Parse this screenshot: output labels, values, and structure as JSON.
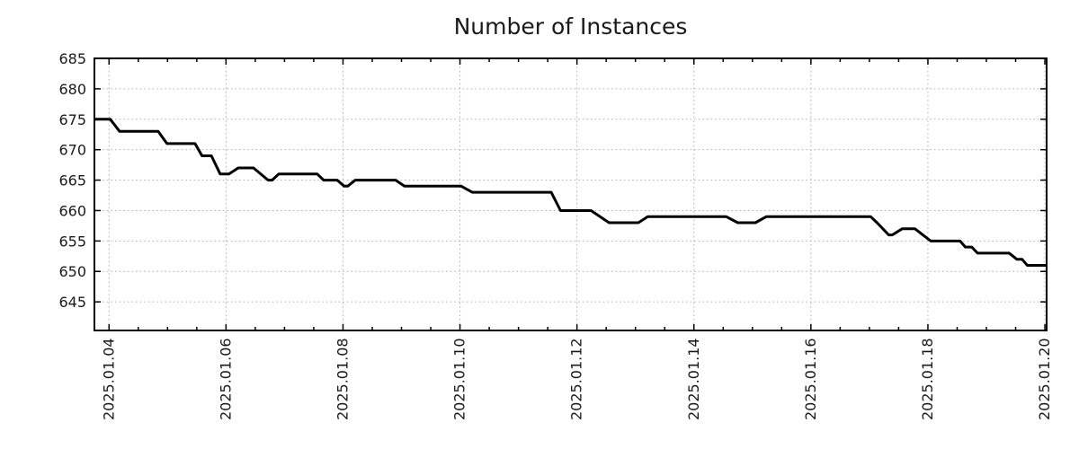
{
  "chart_data": {
    "type": "line",
    "title": "Number of Instances",
    "xlabel": "",
    "ylabel": "",
    "x_axis": {
      "tick_days": [
        4,
        6,
        8,
        10,
        12,
        14,
        16,
        18,
        20
      ],
      "tick_labels": [
        "2025.01.04",
        "2025.01.06",
        "2025.01.08",
        "2025.01.10",
        "2025.01.12",
        "2025.01.14",
        "2025.01.16",
        "2025.01.18",
        "2025.01.20"
      ],
      "range_days": [
        3.75,
        20.03
      ],
      "minor_tick_step_days": 0.5,
      "label_rotation_deg": -90
    },
    "y_axis": {
      "ticks": [
        645,
        650,
        655,
        660,
        665,
        670,
        675,
        680,
        685
      ],
      "tick_labels": [
        "645",
        "650",
        "655",
        "660",
        "665",
        "670",
        "675",
        "680",
        "685"
      ],
      "range": [
        640.3,
        685
      ]
    },
    "grid": {
      "visible": true,
      "style": "dotted",
      "on_major_ticks_only": true
    },
    "legend": {
      "visible": false
    },
    "series": [
      {
        "name": "instances",
        "color": "#000000",
        "line_width": 3,
        "points_day_value": [
          [
            3.75,
            675
          ],
          [
            4.02,
            675
          ],
          [
            4.18,
            673
          ],
          [
            4.84,
            673
          ],
          [
            4.99,
            671
          ],
          [
            5.47,
            671
          ],
          [
            5.59,
            669
          ],
          [
            5.75,
            669
          ],
          [
            5.9,
            666
          ],
          [
            6.05,
            666
          ],
          [
            6.21,
            667
          ],
          [
            6.47,
            667
          ],
          [
            6.72,
            665
          ],
          [
            6.79,
            665
          ],
          [
            6.9,
            666
          ],
          [
            7.56,
            666
          ],
          [
            7.67,
            665
          ],
          [
            7.9,
            665
          ],
          [
            8.02,
            664
          ],
          [
            8.08,
            664
          ],
          [
            8.21,
            665
          ],
          [
            8.9,
            665
          ],
          [
            9.05,
            664
          ],
          [
            10.02,
            664
          ],
          [
            10.21,
            663
          ],
          [
            11.56,
            663
          ],
          [
            11.72,
            660
          ],
          [
            12.24,
            660
          ],
          [
            12.55,
            658
          ],
          [
            13.05,
            658
          ],
          [
            13.21,
            659
          ],
          [
            14.55,
            659
          ],
          [
            14.75,
            658
          ],
          [
            15.05,
            658
          ],
          [
            15.24,
            659
          ],
          [
            17.02,
            659
          ],
          [
            17.13,
            658
          ],
          [
            17.33,
            656
          ],
          [
            17.39,
            656
          ],
          [
            17.56,
            657
          ],
          [
            17.78,
            657
          ],
          [
            18.05,
            655
          ],
          [
            18.55,
            655
          ],
          [
            18.64,
            654
          ],
          [
            18.75,
            654
          ],
          [
            18.85,
            653
          ],
          [
            19.39,
            653
          ],
          [
            19.52,
            652
          ],
          [
            19.61,
            652
          ],
          [
            19.7,
            651
          ],
          [
            20.03,
            651
          ]
        ]
      }
    ],
    "style": {
      "background": "#ffffff",
      "border_color": "#000000",
      "grid_color": "#b8b8b8",
      "tick_color": "#000000",
      "text_color": "#1a1a1a"
    }
  }
}
